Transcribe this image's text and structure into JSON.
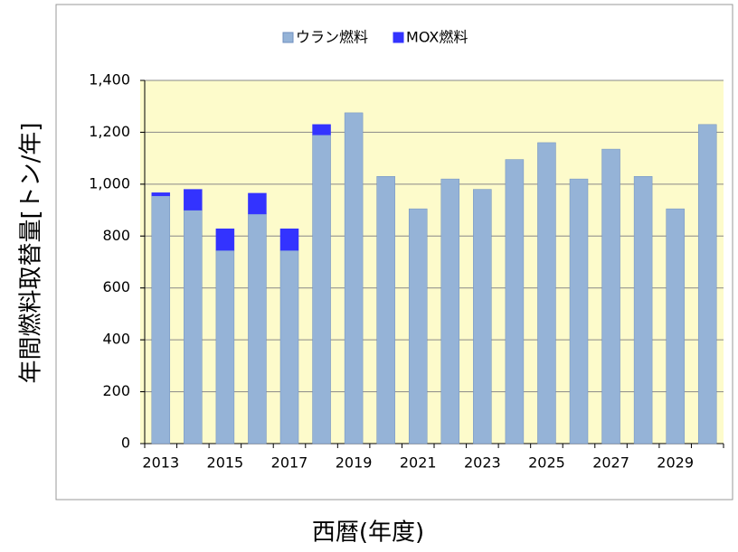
{
  "chart_data": {
    "type": "stacked_bar",
    "y_label": "年間燃料取替量[トン/年]",
    "x_label": "西暦(年度)",
    "categories": [
      "2013",
      null,
      "2015",
      null,
      "2017",
      null,
      "2019",
      null,
      "2021",
      null,
      "2023",
      null,
      "2025",
      null,
      "2027",
      null,
      "2029",
      null
    ],
    "series": [
      {
        "name": "ウラン燃料",
        "color": "#95b3d7",
        "values": [
          955,
          900,
          745,
          885,
          745,
          1190,
          1275,
          1030,
          905,
          1020,
          980,
          1095,
          1160,
          1020,
          1135,
          1030,
          905,
          1230
        ]
      },
      {
        "name": "MOX燃料",
        "color": "#3333ff",
        "values": [
          12,
          80,
          83,
          80,
          83,
          40,
          0,
          0,
          0,
          0,
          0,
          0,
          0,
          0,
          0,
          0,
          0,
          0
        ]
      }
    ],
    "ylim": [
      0,
      1400
    ],
    "yticks": [
      0,
      200,
      400,
      600,
      800,
      {
        "value": 1000,
        "label": "1,000"
      },
      {
        "value": 1200,
        "label": "1,200"
      },
      {
        "value": 1400,
        "label": "1,400"
      }
    ],
    "grid": true,
    "legend": "top"
  }
}
